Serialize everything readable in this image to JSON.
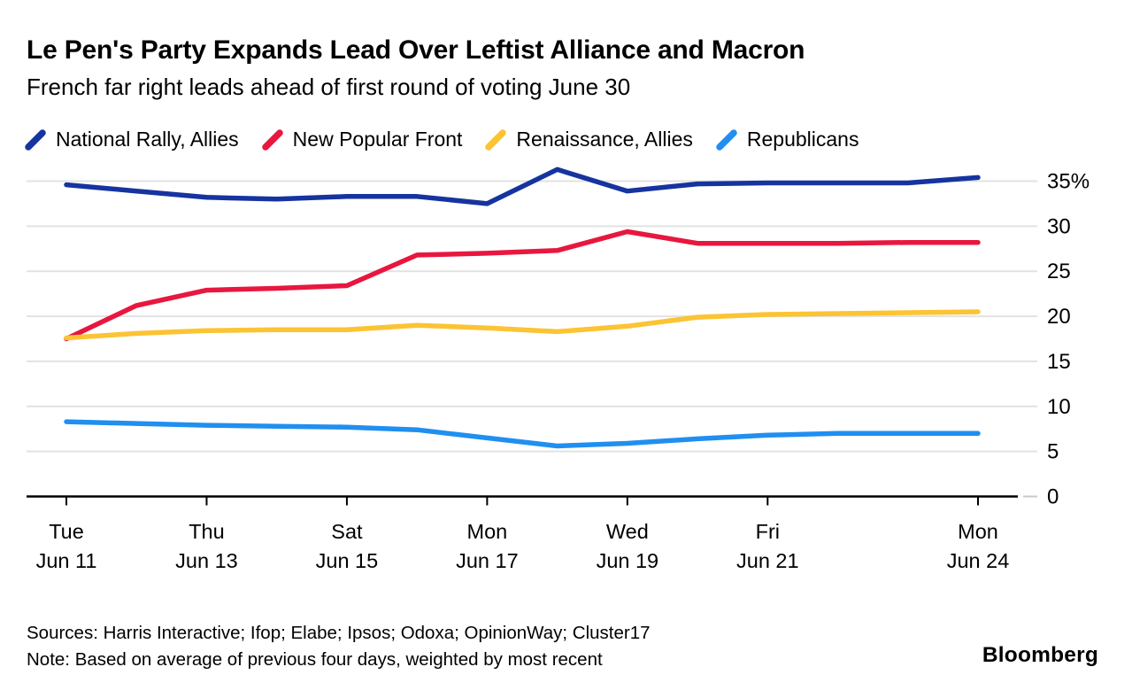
{
  "header": {
    "title": "Le Pen's Party Expands Lead Over Leftist Alliance and Macron",
    "subtitle": "French far right leads ahead of first round of voting June 30"
  },
  "legend": [
    {
      "label": "National Rally, Allies",
      "color": "#16349f"
    },
    {
      "label": "New Popular Front",
      "color": "#e8173f"
    },
    {
      "label": "Renaissance, Allies",
      "color": "#fcc333"
    },
    {
      "label": "Republicans",
      "color": "#208ff0"
    }
  ],
  "chart_data": {
    "type": "line",
    "x": [
      "Jun 11",
      "Jun 12",
      "Jun 13",
      "Jun 14",
      "Jun 15",
      "Jun 16",
      "Jun 17",
      "Jun 18",
      "Jun 19",
      "Jun 20",
      "Jun 21",
      "Jun 22",
      "Jun 23",
      "Jun 24"
    ],
    "series": [
      {
        "name": "National Rally, Allies",
        "color": "#16349f",
        "values": [
          34.6,
          33.9,
          33.2,
          33.0,
          33.3,
          33.3,
          32.5,
          36.3,
          33.9,
          34.7,
          34.8,
          34.8,
          34.8,
          35.4
        ]
      },
      {
        "name": "New Popular Front",
        "color": "#e8173f",
        "values": [
          17.5,
          21.2,
          22.9,
          23.1,
          23.4,
          26.8,
          27.0,
          27.3,
          29.4,
          28.1,
          28.1,
          28.1,
          28.2,
          28.2
        ]
      },
      {
        "name": "Renaissance, Allies",
        "color": "#fcc333",
        "values": [
          17.6,
          18.1,
          18.4,
          18.5,
          18.5,
          19.0,
          18.7,
          18.3,
          18.9,
          19.9,
          20.2,
          20.3,
          20.4,
          20.5
        ]
      },
      {
        "name": "Republicans",
        "color": "#208ff0",
        "values": [
          8.3,
          8.1,
          7.9,
          7.8,
          7.7,
          7.4,
          6.5,
          5.6,
          5.9,
          6.4,
          6.8,
          7.0,
          7.0,
          7.0
        ]
      }
    ],
    "x_ticks": [
      {
        "index": 0,
        "day": "Tue",
        "date": "Jun 11"
      },
      {
        "index": 2,
        "day": "Thu",
        "date": "Jun 13"
      },
      {
        "index": 4,
        "day": "Sat",
        "date": "Jun 15"
      },
      {
        "index": 6,
        "day": "Mon",
        "date": "Jun 17"
      },
      {
        "index": 8,
        "day": "Wed",
        "date": "Jun 19"
      },
      {
        "index": 10,
        "day": "Fri",
        "date": "Jun 21"
      },
      {
        "index": 13,
        "day": "Mon",
        "date": "Jun 24"
      }
    ],
    "ylim": [
      0,
      35
    ],
    "ytick_step": 5,
    "ytick_labels": [
      "0",
      "5",
      "10",
      "15",
      "20",
      "25",
      "30",
      "35%"
    ],
    "grid": true,
    "legend_position": "top",
    "title": "Le Pen's Party Expands Lead Over Leftist Alliance and Macron",
    "xlabel": "",
    "ylabel": ""
  },
  "footer": {
    "sources": "Sources: Harris Interactive; Ifop; Elabe; Ipsos; Odoxa; OpinionWay; Cluster17",
    "note": "Note: Based on average of previous four days, weighted by most recent",
    "logo": "Bloomberg"
  },
  "colors": {
    "grid": "#e2e2e2",
    "axis": "#000000",
    "grid_stub": "#c9c9c9"
  }
}
